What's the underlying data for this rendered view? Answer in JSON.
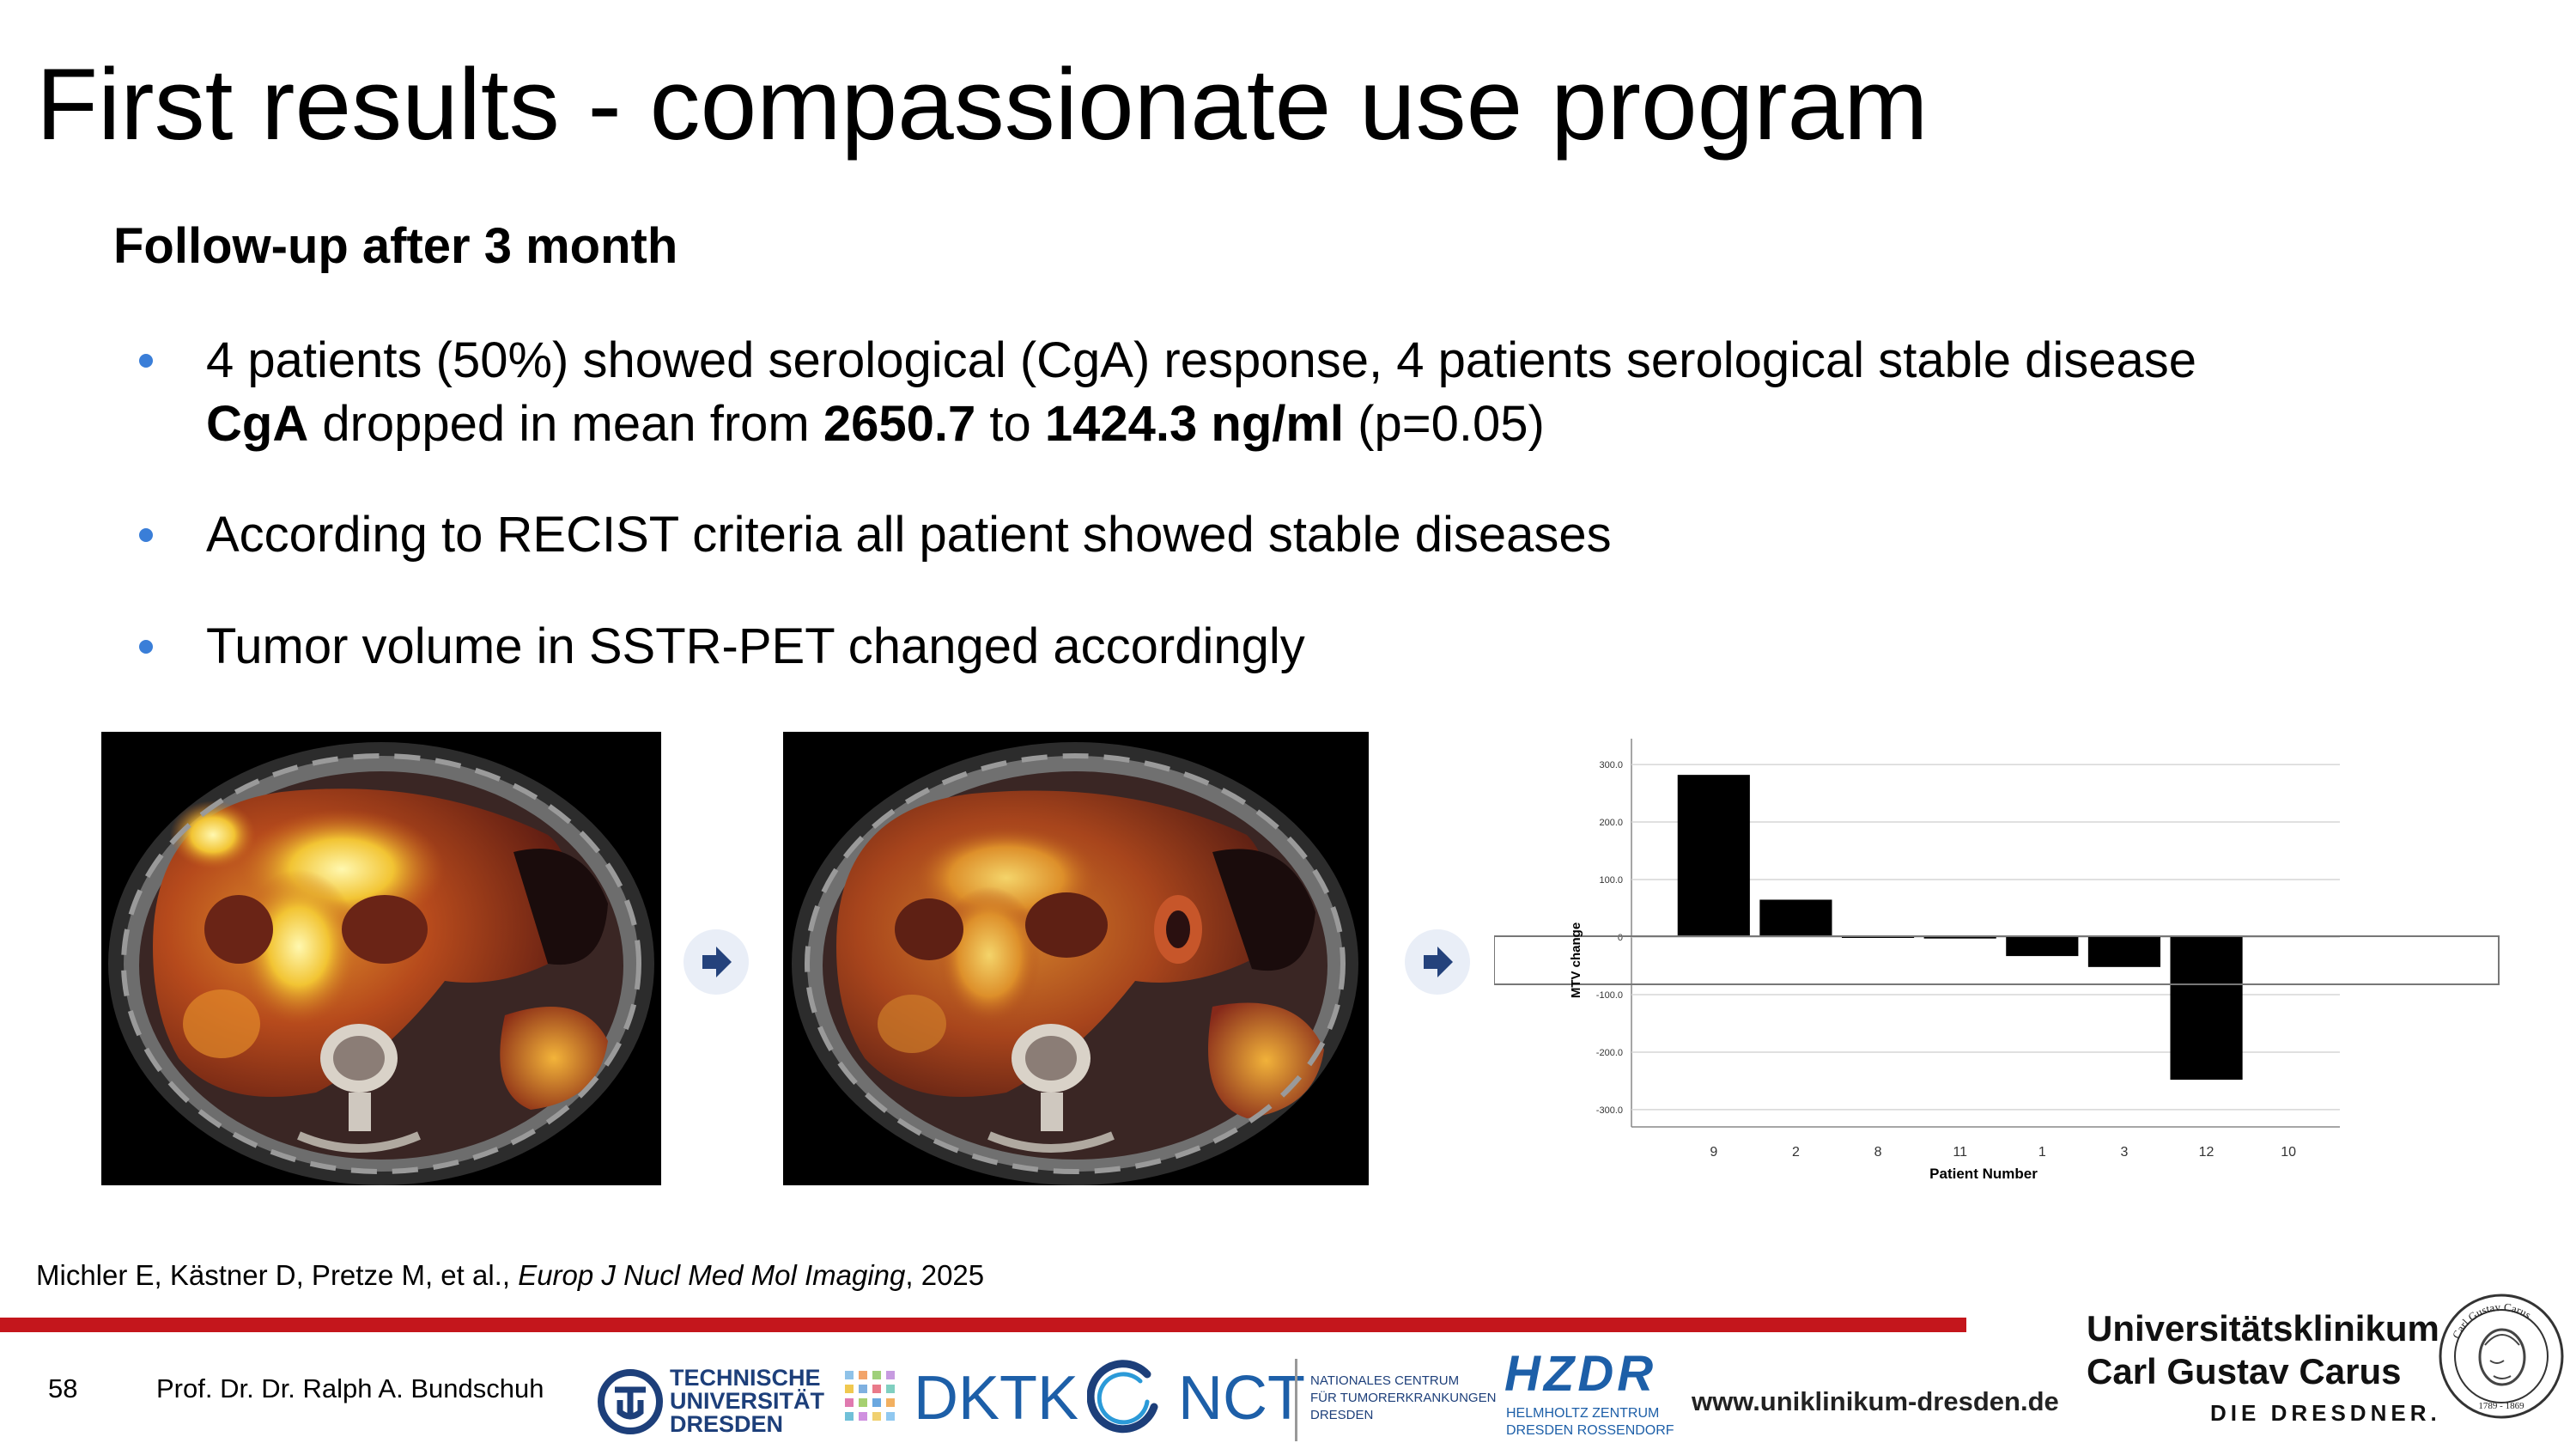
{
  "slide": {
    "title": "First results - compassionate use program",
    "subtitle": "Follow-up after 3 month",
    "bullets": [
      {
        "line1": "4 patients (50%) showed serological (CgA) response, 4 patients serological stable disease",
        "line2_b1": "CgA",
        "line2_t1": " dropped in mean from ",
        "line2_b2": "2650.7",
        "line2_t2": " to ",
        "line2_b3": "1424.3 ng/ml",
        "line2_t3": " (p=0.05)"
      },
      {
        "text": "According to RECIST criteria all patient showed stable diseases"
      },
      {
        "text": "Tumor volume in SSTR-PET changed accordingly"
      }
    ]
  },
  "citation": {
    "authors": "Michler E, Kästner D, Pretze M, et al., ",
    "journal": "Europ J Nucl Med Mol Imaging",
    "year": ", 2025"
  },
  "footer": {
    "page_number": "58",
    "author": "Prof. Dr. Dr. Ralph A. Bundschuh",
    "tud_line1": "TECHNISCHE",
    "tud_line2": "UNIVERSITÄT",
    "tud_line3": "DRESDEN",
    "dktk": "DKTK",
    "nct": "NCT",
    "nct_sub1": "NATIONALES CENTRUM",
    "nct_sub2": "FÜR TUMORERKRANKUNGEN",
    "nct_sub3": "DRESDEN",
    "hzdr": "HZDR",
    "hzdr_sub1": "HELMHOLTZ ZENTRUM",
    "hzdr_sub2": "DRESDEN ROSSENDORF",
    "website": "www.uniklinikum-dresden.de",
    "uk_line1": "Universitätsklinikum",
    "uk_line2": "Carl Gustav Carus",
    "uk_line3": "DIE DRESDNER.",
    "seal_text": "Carl Gustav Carus",
    "seal_years": "1789 - 1869"
  },
  "colors": {
    "accent_red": "#c4161c",
    "bullet_blue": "#3a7ed8",
    "arrow_blue": "#24427c"
  },
  "chart_data": {
    "type": "bar",
    "categories": [
      "9",
      "2",
      "8",
      "11",
      "1",
      "3",
      "12",
      "10"
    ],
    "values": [
      282,
      65,
      3,
      2,
      -33,
      -52,
      -248,
      0
    ],
    "yticks": [
      "300.0",
      "200.0",
      "100.0",
      "0",
      "-100.0",
      "-200.0",
      "-300.0"
    ],
    "ytick_values": [
      300,
      200,
      100,
      0,
      -100,
      -200,
      -300
    ],
    "xlabel": "Patient Number",
    "ylabel": "MTV change",
    "ylim": [
      -330,
      330
    ],
    "grid": true
  }
}
